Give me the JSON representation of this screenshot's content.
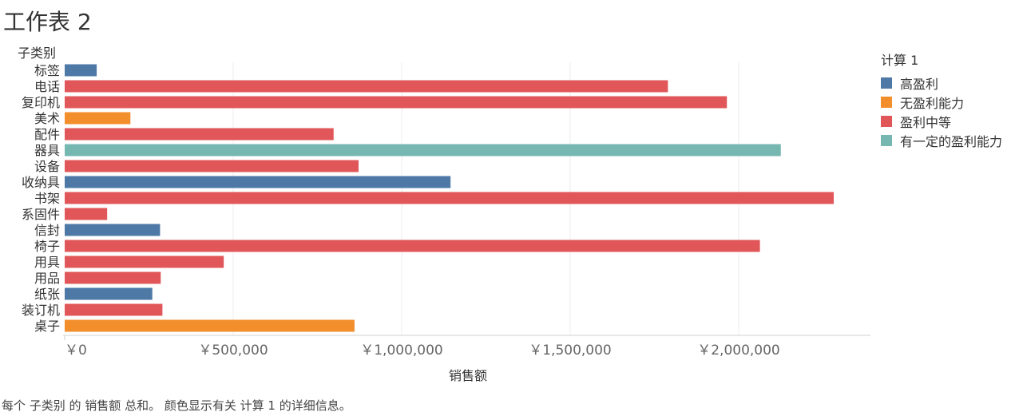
{
  "sheet_title": "工作表 2",
  "caption": "每个 子类别 的 销售额 总和。 颜色显示有关 计算 1 的详细信息。",
  "legend": {
    "title": "计算 1",
    "items": [
      {
        "label": "高盈利",
        "color": "#4e79a7"
      },
      {
        "label": "无盈利能力",
        "color": "#f28e2b"
      },
      {
        "label": "盈利中等",
        "color": "#e15759"
      },
      {
        "label": "有一定的盈利能力",
        "color": "#76b7b2"
      }
    ]
  },
  "chart_data": {
    "type": "bar",
    "orientation": "horizontal",
    "row_header": "子类别",
    "xlabel": "销售额",
    "xlim": [
      0,
      2400000
    ],
    "xticks": [
      0,
      500000,
      1000000,
      1500000,
      2000000
    ],
    "xtick_labels": [
      "￥0",
      "￥500,000",
      "￥1,000,000",
      "￥1,500,000",
      "￥2,000,000"
    ],
    "gridlines": true,
    "legend_position": "top-right",
    "bars": [
      {
        "category": "标签",
        "value": 95000,
        "group": "高盈利"
      },
      {
        "category": "电话",
        "value": 1790000,
        "group": "盈利中等"
      },
      {
        "category": "复印机",
        "value": 1965000,
        "group": "盈利中等"
      },
      {
        "category": "美术",
        "value": 195000,
        "group": "无盈利能力"
      },
      {
        "category": "配件",
        "value": 798000,
        "group": "盈利中等"
      },
      {
        "category": "器具",
        "value": 2125000,
        "group": "有一定的盈利能力"
      },
      {
        "category": "设备",
        "value": 872000,
        "group": "盈利中等"
      },
      {
        "category": "收纳具",
        "value": 1145000,
        "group": "高盈利"
      },
      {
        "category": "书架",
        "value": 2282000,
        "group": "盈利中等"
      },
      {
        "category": "系固件",
        "value": 126000,
        "group": "盈利中等"
      },
      {
        "category": "信封",
        "value": 283000,
        "group": "高盈利"
      },
      {
        "category": "椅子",
        "value": 2063000,
        "group": "盈利中等"
      },
      {
        "category": "用具",
        "value": 472000,
        "group": "盈利中等"
      },
      {
        "category": "用品",
        "value": 285000,
        "group": "盈利中等"
      },
      {
        "category": "纸张",
        "value": 260000,
        "group": "高盈利"
      },
      {
        "category": "装订机",
        "value": 290000,
        "group": "盈利中等"
      },
      {
        "category": "桌子",
        "value": 860000,
        "group": "无盈利能力"
      }
    ]
  }
}
